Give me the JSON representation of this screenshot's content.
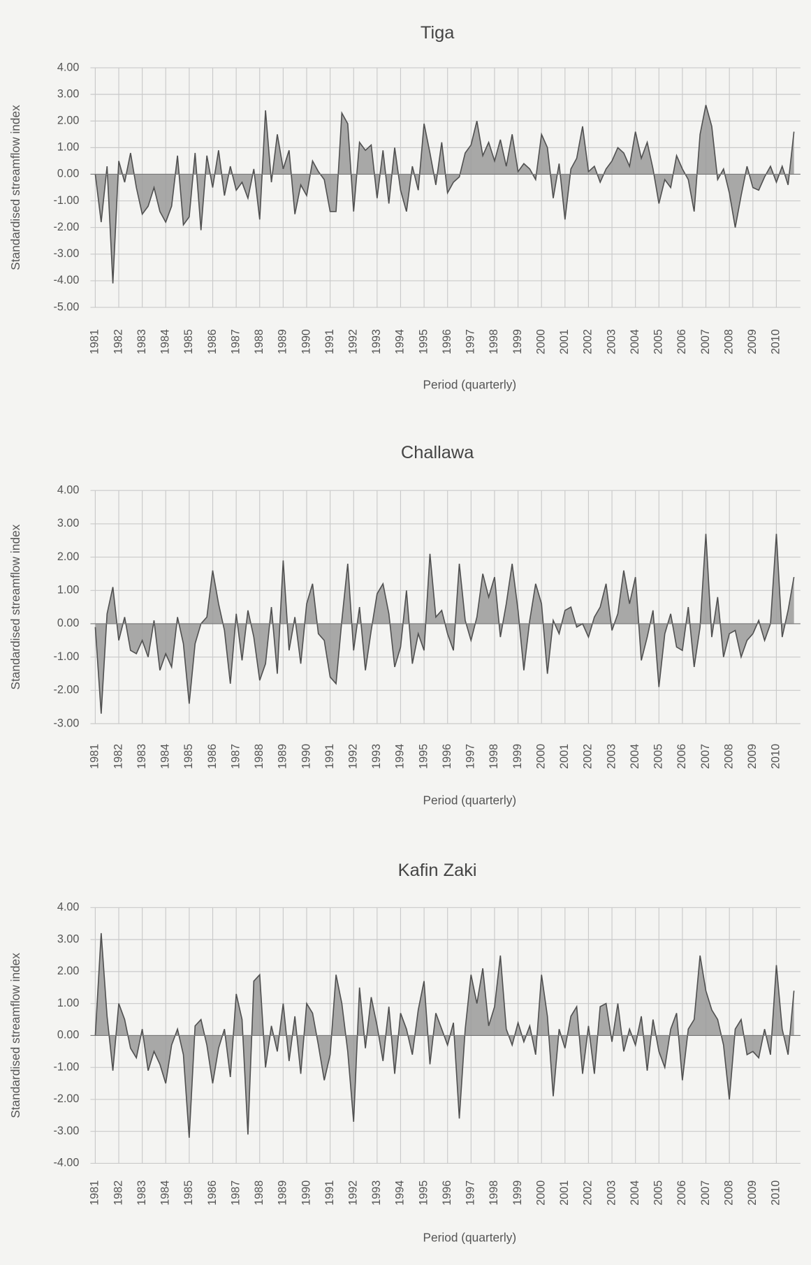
{
  "chart_data": [
    {
      "type": "area",
      "title": "Tiga",
      "y_label": "Standardised streamflow index",
      "x_label": "Period (quarterly)",
      "color": "#9a9a9a",
      "line_color": "#505050",
      "grid": true,
      "categories": [
        "1981",
        null,
        null,
        null,
        "1982",
        null,
        null,
        null,
        "1983",
        null,
        null,
        null,
        "1984",
        null,
        null,
        null,
        "1985",
        null,
        null,
        null,
        "1986",
        null,
        null,
        null,
        "1987",
        null,
        null,
        null,
        "1988",
        null,
        null,
        null,
        "1989",
        null,
        null,
        null,
        "1990",
        null,
        null,
        null,
        "1991",
        null,
        null,
        null,
        "1992",
        null,
        null,
        null,
        "1993",
        null,
        null,
        null,
        "1994",
        null,
        null,
        null,
        "1995",
        null,
        null,
        null,
        "1996",
        null,
        null,
        null,
        "1997",
        null,
        null,
        null,
        "1998",
        null,
        null,
        null,
        "1999",
        null,
        null,
        null,
        "2000",
        null,
        null,
        null,
        "2001",
        null,
        null,
        null,
        "2002",
        null,
        null,
        null,
        "2003",
        null,
        null,
        null,
        "2004",
        null,
        null,
        null,
        "2005",
        null,
        null,
        null,
        "2006",
        null,
        null,
        null,
        "2007",
        null,
        null,
        null,
        "2008",
        null,
        null,
        null,
        "2009",
        null,
        null,
        null,
        "2010",
        null,
        null,
        null
      ],
      "values": [
        0,
        -1.8,
        0.3,
        -4.1,
        0.5,
        -0.3,
        0.8,
        -0.5,
        -1.5,
        -1.2,
        -0.5,
        -1.4,
        -1.8,
        -1.2,
        0.7,
        -1.9,
        -1.6,
        0.8,
        -2.1,
        0.7,
        -0.5,
        0.9,
        -0.8,
        0.3,
        -0.6,
        -0.3,
        -0.9,
        0.2,
        -1.7,
        2.4,
        -0.3,
        1.5,
        0.2,
        0.9,
        -1.5,
        -0.4,
        -0.8,
        0.5,
        0.1,
        -0.2,
        -1.4,
        -1.4,
        2.3,
        1.9,
        -1.4,
        1.2,
        0.9,
        1.1,
        -0.9,
        0.9,
        -1.1,
        1.0,
        -0.6,
        -1.4,
        0.3,
        -0.6,
        1.9,
        0.8,
        -0.4,
        1.2,
        -0.7,
        -0.3,
        -0.1,
        0.8,
        1.1,
        2.0,
        0.7,
        1.2,
        0.5,
        1.3,
        0.3,
        1.5,
        0.1,
        0.4,
        0.2,
        -0.2,
        1.5,
        1.0,
        -0.9,
        0.4,
        -1.7,
        0.2,
        0.6,
        1.8,
        0.1,
        0.3,
        -0.3,
        0.2,
        0.5,
        1.0,
        0.8,
        0.3,
        1.6,
        0.6,
        1.2,
        0.2,
        -1.1,
        -0.2,
        -0.5,
        0.7,
        0.2,
        -0.2,
        -1.4,
        1.5,
        2.6,
        1.8,
        -0.2,
        0.2,
        -0.7,
        -2.0,
        -0.8,
        0.3,
        -0.5,
        -0.6,
        -0.1,
        0.3,
        -0.3,
        0.3,
        -0.4,
        1.6
      ],
      "ylim": [
        -5,
        4
      ],
      "yticks": [
        {
          "value": 4,
          "label": "4.00"
        },
        {
          "value": 3,
          "label": "3.00"
        },
        {
          "value": 2,
          "label": "2.00"
        },
        {
          "value": 1,
          "label": "1.00"
        },
        {
          "value": 0,
          "label": "0.00"
        },
        {
          "value": -1,
          "label": "-1.00"
        },
        {
          "value": -2,
          "label": "-2.00"
        },
        {
          "value": -3,
          "label": "-3.00"
        },
        {
          "value": -4,
          "label": "-4.00"
        },
        {
          "value": -5,
          "label": "-5.00"
        }
      ]
    },
    {
      "type": "area",
      "title": "Challawa",
      "y_label": "Standardised streamflow index",
      "x_label": "Period (quarterly)",
      "color": "#9a9a9a",
      "line_color": "#505050",
      "grid": true,
      "categories": [
        "1981",
        null,
        null,
        null,
        "1982",
        null,
        null,
        null,
        "1983",
        null,
        null,
        null,
        "1984",
        null,
        null,
        null,
        "1985",
        null,
        null,
        null,
        "1986",
        null,
        null,
        null,
        "1987",
        null,
        null,
        null,
        "1988",
        null,
        null,
        null,
        "1989",
        null,
        null,
        null,
        "1990",
        null,
        null,
        null,
        "1991",
        null,
        null,
        null,
        "1992",
        null,
        null,
        null,
        "1993",
        null,
        null,
        null,
        "1994",
        null,
        null,
        null,
        "1995",
        null,
        null,
        null,
        "1996",
        null,
        null,
        null,
        "1997",
        null,
        null,
        null,
        "1998",
        null,
        null,
        null,
        "1999",
        null,
        null,
        null,
        "2000",
        null,
        null,
        null,
        "2001",
        null,
        null,
        null,
        "2002",
        null,
        null,
        null,
        "2003",
        null,
        null,
        null,
        "2004",
        null,
        null,
        null,
        "2005",
        null,
        null,
        null,
        "2006",
        null,
        null,
        null,
        "2007",
        null,
        null,
        null,
        "2008",
        null,
        null,
        null,
        "2009",
        null,
        null,
        null,
        "2010",
        null,
        null,
        null
      ],
      "values": [
        -0.1,
        -2.7,
        0.3,
        1.1,
        -0.5,
        0.2,
        -0.8,
        -0.9,
        -0.5,
        -1.0,
        0.1,
        -1.4,
        -0.9,
        -1.3,
        0.2,
        -0.6,
        -2.4,
        -0.6,
        0.0,
        0.2,
        1.6,
        0.6,
        -0.2,
        -1.8,
        0.3,
        -1.1,
        0.4,
        -0.4,
        -1.7,
        -1.2,
        0.5,
        -1.5,
        1.9,
        -0.8,
        0.2,
        -1.2,
        0.6,
        1.2,
        -0.3,
        -0.5,
        -1.6,
        -1.8,
        0.1,
        1.8,
        -0.8,
        0.5,
        -1.4,
        -0.2,
        0.9,
        1.2,
        0.3,
        -1.3,
        -0.7,
        1.0,
        -1.2,
        -0.3,
        -0.8,
        2.1,
        0.2,
        0.4,
        -0.3,
        -0.8,
        1.8,
        0.1,
        -0.5,
        0.2,
        1.5,
        0.8,
        1.4,
        -0.4,
        0.6,
        1.8,
        0.4,
        -1.4,
        0.1,
        1.2,
        0.6,
        -1.5,
        0.1,
        -0.3,
        0.4,
        0.5,
        -0.1,
        0.0,
        -0.4,
        0.2,
        0.5,
        1.2,
        -0.2,
        0.3,
        1.6,
        0.6,
        1.4,
        -1.1,
        -0.4,
        0.4,
        -1.9,
        -0.3,
        0.3,
        -0.7,
        -0.8,
        0.5,
        -1.3,
        -0.1,
        2.7,
        -0.4,
        0.8,
        -1.0,
        -0.3,
        -0.2,
        -1.0,
        -0.5,
        -0.3,
        0.1,
        -0.5,
        0.0,
        2.7,
        -0.4,
        0.4,
        1.4
      ],
      "ylim": [
        -3,
        4
      ],
      "yticks": [
        {
          "value": 4,
          "label": "4.00"
        },
        {
          "value": 3,
          "label": "3.00"
        },
        {
          "value": 2,
          "label": "2.00"
        },
        {
          "value": 1,
          "label": "1.00"
        },
        {
          "value": 0,
          "label": "0.00"
        },
        {
          "value": -1,
          "label": "-1.00"
        },
        {
          "value": -2,
          "label": "-2.00"
        },
        {
          "value": -3,
          "label": "-3.00"
        }
      ]
    },
    {
      "type": "area",
      "title": "Kafin Zaki",
      "y_label": "Standardised streamflow index",
      "x_label": "Period (quarterly)",
      "color": "#9a9a9a",
      "line_color": "#505050",
      "grid": true,
      "categories": [
        "1981",
        null,
        null,
        null,
        "1982",
        null,
        null,
        null,
        "1983",
        null,
        null,
        null,
        "1984",
        null,
        null,
        null,
        "1985",
        null,
        null,
        null,
        "1986",
        null,
        null,
        null,
        "1987",
        null,
        null,
        null,
        "1988",
        null,
        null,
        null,
        "1989",
        null,
        null,
        null,
        "1990",
        null,
        null,
        null,
        "1991",
        null,
        null,
        null,
        "1992",
        null,
        null,
        null,
        "1993",
        null,
        null,
        null,
        "1994",
        null,
        null,
        null,
        "1995",
        null,
        null,
        null,
        "1996",
        null,
        null,
        null,
        "1997",
        null,
        null,
        null,
        "1998",
        null,
        null,
        null,
        "1999",
        null,
        null,
        null,
        "2000",
        null,
        null,
        null,
        "2001",
        null,
        null,
        null,
        "2002",
        null,
        null,
        null,
        "2003",
        null,
        null,
        null,
        "2004",
        null,
        null,
        null,
        "2005",
        null,
        null,
        null,
        "2006",
        null,
        null,
        null,
        "2007",
        null,
        null,
        null,
        "2008",
        null,
        null,
        null,
        "2009",
        null,
        null,
        null,
        "2010",
        null,
        null,
        null
      ],
      "values": [
        0,
        3.2,
        0.6,
        -1.1,
        1.0,
        0.5,
        -0.4,
        -0.7,
        0.2,
        -1.1,
        -0.5,
        -0.9,
        -1.5,
        -0.3,
        0.2,
        -0.6,
        -3.2,
        0.3,
        0.5,
        -0.3,
        -1.5,
        -0.4,
        0.2,
        -1.3,
        1.3,
        0.5,
        -3.1,
        1.7,
        1.9,
        -1.0,
        0.3,
        -0.5,
        1.0,
        -0.8,
        0.6,
        -1.2,
        1.0,
        0.7,
        -0.3,
        -1.4,
        -0.6,
        1.9,
        1.0,
        -0.5,
        -2.7,
        1.5,
        -0.4,
        1.2,
        0.3,
        -0.8,
        0.9,
        -1.2,
        0.7,
        0.2,
        -0.6,
        0.8,
        1.7,
        -0.9,
        0.7,
        0.2,
        -0.3,
        0.4,
        -2.6,
        0.2,
        1.9,
        1.0,
        2.1,
        0.3,
        0.9,
        2.5,
        0.2,
        -0.3,
        0.4,
        -0.2,
        0.3,
        -0.6,
        1.9,
        0.6,
        -1.9,
        0.2,
        -0.4,
        0.6,
        0.9,
        -1.2,
        0.3,
        -1.2,
        0.9,
        1.0,
        -0.2,
        1.0,
        -0.5,
        0.2,
        -0.3,
        0.6,
        -1.1,
        0.5,
        -0.5,
        -1.0,
        0.2,
        0.7,
        -1.4,
        0.2,
        0.5,
        2.5,
        1.4,
        0.8,
        0.5,
        -0.3,
        -2.0,
        0.2,
        0.5,
        -0.6,
        -0.5,
        -0.7,
        0.2,
        -0.6,
        2.2,
        0.2,
        -0.6,
        1.4
      ],
      "ylim": [
        -4,
        4
      ],
      "yticks": [
        {
          "value": 4,
          "label": "4.00"
        },
        {
          "value": 3,
          "label": "3.00"
        },
        {
          "value": 2,
          "label": "2.00"
        },
        {
          "value": 1,
          "label": "1.00"
        },
        {
          "value": 0,
          "label": "0.00"
        },
        {
          "value": -1,
          "label": "-1.00"
        },
        {
          "value": -2,
          "label": "-2.00"
        },
        {
          "value": -3,
          "label": "-3.00"
        },
        {
          "value": -4,
          "label": "-4.00"
        }
      ]
    }
  ]
}
